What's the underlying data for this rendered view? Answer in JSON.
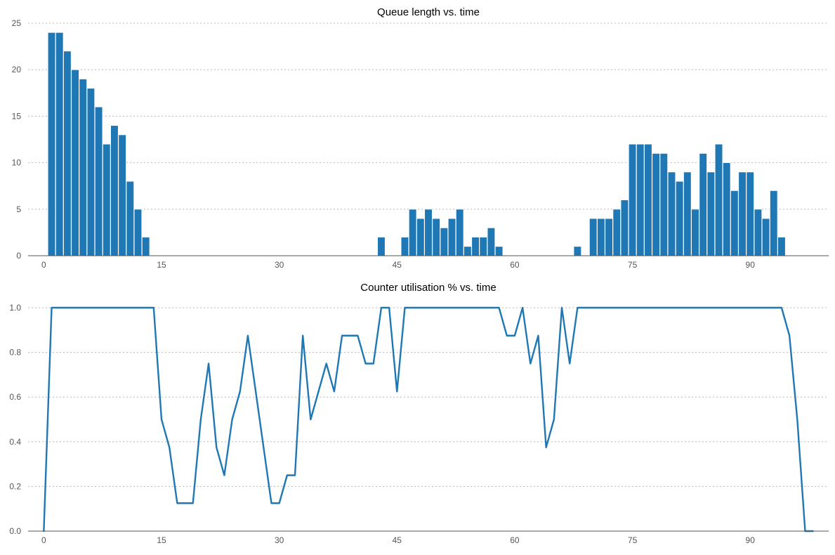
{
  "chart_data": [
    {
      "type": "bar",
      "title": "Queue length vs. time",
      "xlabel": "",
      "ylabel": "",
      "xlim": [
        -2,
        100
      ],
      "ylim": [
        0,
        25
      ],
      "xticks": [
        0,
        15,
        30,
        45,
        60,
        75,
        90
      ],
      "yticks": [
        0,
        5,
        10,
        15,
        20,
        25
      ],
      "grid": "y",
      "color": "#1f77b4",
      "x": [
        1,
        2,
        3,
        4,
        5,
        6,
        7,
        8,
        9,
        10,
        11,
        12,
        13,
        43,
        46,
        47,
        48,
        49,
        50,
        51,
        52,
        53,
        54,
        55,
        56,
        57,
        58,
        68,
        70,
        71,
        72,
        73,
        74,
        75,
        76,
        77,
        78,
        79,
        80,
        81,
        82,
        83,
        84,
        85,
        86,
        87,
        88,
        89,
        90,
        91,
        92,
        93,
        94
      ],
      "values": [
        24,
        24,
        22,
        20,
        19,
        18,
        16,
        12,
        14,
        13,
        8,
        5,
        2,
        2,
        2,
        5,
        4,
        5,
        4,
        3,
        4,
        5,
        1,
        2,
        2,
        3,
        1,
        1,
        4,
        4,
        4,
        5,
        6,
        12,
        12,
        12,
        11,
        11,
        9,
        8,
        9,
        5,
        11,
        9,
        12,
        10,
        7,
        9,
        9,
        5,
        4,
        7,
        2
      ]
    },
    {
      "type": "line",
      "title": "Counter utilisation % vs. time",
      "xlabel": "",
      "ylabel": "",
      "xlim": [
        -2,
        100
      ],
      "ylim": [
        0,
        1.0
      ],
      "xticks": [
        0,
        15,
        30,
        45,
        60,
        75,
        90
      ],
      "yticks": [
        0.0,
        0.2,
        0.4,
        0.6,
        0.8,
        1.0
      ],
      "grid": "y",
      "color": "#1f77b4",
      "points": [
        [
          0,
          0
        ],
        [
          1,
          1
        ],
        [
          14,
          1
        ],
        [
          15,
          0.5
        ],
        [
          16,
          0.375
        ],
        [
          17,
          0.125
        ],
        [
          19,
          0.125
        ],
        [
          20,
          0.5
        ],
        [
          21,
          0.75
        ],
        [
          22,
          0.375
        ],
        [
          23,
          0.25
        ],
        [
          24,
          0.5
        ],
        [
          25,
          0.625
        ],
        [
          26,
          0.875
        ],
        [
          29,
          0.125
        ],
        [
          30,
          0.125
        ],
        [
          31,
          0.25
        ],
        [
          32,
          0.25
        ],
        [
          33,
          0.875
        ],
        [
          34,
          0.5
        ],
        [
          36,
          0.75
        ],
        [
          37,
          0.625
        ],
        [
          38,
          0.875
        ],
        [
          40,
          0.875
        ],
        [
          41,
          0.75
        ],
        [
          42,
          0.75
        ],
        [
          43,
          1
        ],
        [
          44,
          1
        ],
        [
          45,
          0.625
        ],
        [
          46,
          1
        ],
        [
          58,
          1
        ],
        [
          59,
          0.875
        ],
        [
          60,
          0.875
        ],
        [
          61,
          1
        ],
        [
          62,
          0.75
        ],
        [
          63,
          0.875
        ],
        [
          64,
          0.375
        ],
        [
          65,
          0.5
        ],
        [
          66,
          1
        ],
        [
          67,
          0.75
        ],
        [
          68,
          1
        ],
        [
          94,
          1
        ],
        [
          95,
          0.875
        ],
        [
          96,
          0.5
        ],
        [
          97,
          0
        ],
        [
          98,
          0
        ]
      ]
    }
  ]
}
